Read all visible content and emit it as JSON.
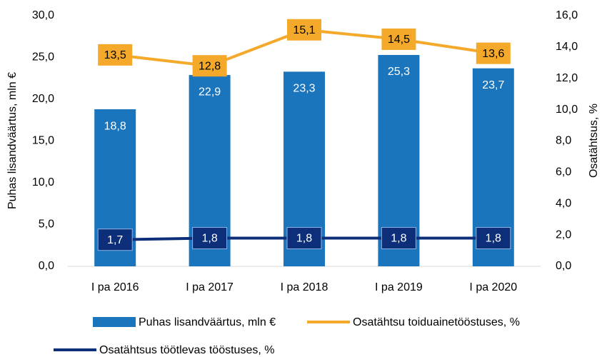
{
  "chart_data": {
    "type": "bar_line",
    "categories": [
      "I pa 2016",
      "I pa 2017",
      "I pa 2018",
      "I pa 2019",
      "I pa 2020"
    ],
    "series": [
      {
        "name": "Puhas lisandväärtus, mln €",
        "type": "bar",
        "axis": "y",
        "color": "#1b75bc",
        "values": [
          18.8,
          22.9,
          23.3,
          25.3,
          23.7
        ],
        "value_labels": [
          "18,8",
          "22,9",
          "23,3",
          "25,3",
          "23,7"
        ]
      },
      {
        "name": "Osatähtsu toiduainetööstuses, %",
        "type": "line",
        "axis": "y2",
        "color": "#f4a92a",
        "values": [
          13.5,
          12.8,
          15.1,
          14.5,
          13.6
        ],
        "value_labels": [
          "13,5",
          "12,8",
          "15,1",
          "14,5",
          "13,6"
        ]
      },
      {
        "name": "Osatähtsus töötlevas tööstuses, %",
        "type": "line",
        "axis": "y2",
        "color": "#0d2f7a",
        "values": [
          1.7,
          1.8,
          1.8,
          1.8,
          1.8
        ],
        "value_labels": [
          "1,7",
          "1,8",
          "1,8",
          "1,8",
          "1,8"
        ]
      }
    ],
    "ylabel": "Puhas lisandväärtus, mln €",
    "y2label": "Osatähtsus, %",
    "ylim": [
      0,
      30
    ],
    "yticks": [
      {
        "value": 0,
        "label": "0,0"
      },
      {
        "value": 5,
        "label": "5,0"
      },
      {
        "value": 10,
        "label": "10,0"
      },
      {
        "value": 15,
        "label": "15,0"
      },
      {
        "value": 20,
        "label": "20,0"
      },
      {
        "value": 25,
        "label": "25,0"
      },
      {
        "value": 30,
        "label": "30,0"
      }
    ],
    "y2lim": [
      0,
      16
    ],
    "y2ticks": [
      {
        "value": 0,
        "label": "0,0"
      },
      {
        "value": 2,
        "label": "2,0"
      },
      {
        "value": 4,
        "label": "4,0"
      },
      {
        "value": 6,
        "label": "6,0"
      },
      {
        "value": 8,
        "label": "8,0"
      },
      {
        "value": 10,
        "label": "10,0"
      },
      {
        "value": 12,
        "label": "12,0"
      },
      {
        "value": 14,
        "label": "14,0"
      },
      {
        "value": 16,
        "label": "16,0"
      }
    ],
    "legend": "bottom"
  }
}
